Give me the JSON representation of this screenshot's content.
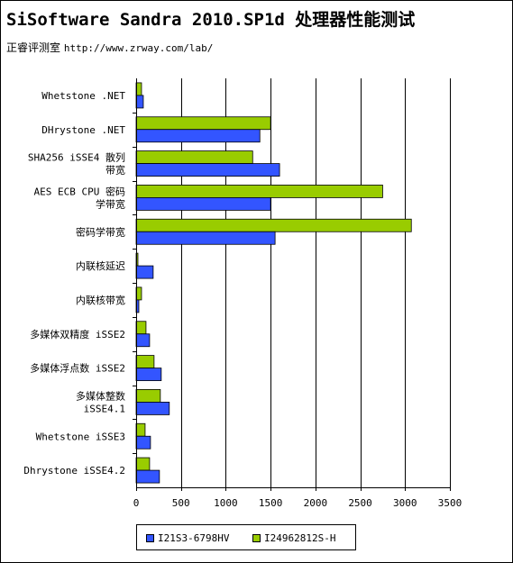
{
  "header": {
    "title": "SiSoftware Sandra 2010.SP1d 处理器性能测试",
    "source_label": "正睿评测室",
    "source_url": "http://www.zrway.com/lab/"
  },
  "colors": {
    "series_a": "#3355ff",
    "series_b": "#99cc00",
    "gridline": "#000000"
  },
  "chart_data": {
    "type": "bar",
    "orientation": "horizontal",
    "categories": [
      [
        "Whetstone .NET"
      ],
      [
        "DHrystone .NET"
      ],
      [
        "SHA256 iSSE4 散列",
        "带宽"
      ],
      [
        "AES ECB CPU 密码",
        "学带宽"
      ],
      [
        "密码学带宽"
      ],
      [
        "内联核延迟"
      ],
      [
        "内联核带宽"
      ],
      [
        "多媒体双精度 iSSE2"
      ],
      [
        "多媒体浮点数 iSSE2"
      ],
      [
        "多媒体整数",
        "iSSE4.1"
      ],
      [
        "Whetstone iSSE3"
      ],
      [
        "Dhrystone iSSE4.2"
      ]
    ],
    "series": [
      {
        "name": "I21S3-6798HV",
        "values": [
          80,
          1380,
          1600,
          1500,
          1550,
          190,
          30,
          150,
          280,
          370,
          160,
          260
        ]
      },
      {
        "name": "I24962812S-H",
        "values": [
          60,
          1500,
          1300,
          2750,
          3070,
          20,
          60,
          110,
          200,
          270,
          100,
          150
        ]
      }
    ],
    "xlim": [
      0,
      3500
    ],
    "x_ticks": [
      0,
      500,
      1000,
      1500,
      2000,
      2500,
      3000,
      3500
    ],
    "grid": true,
    "legend_position": "bottom"
  }
}
